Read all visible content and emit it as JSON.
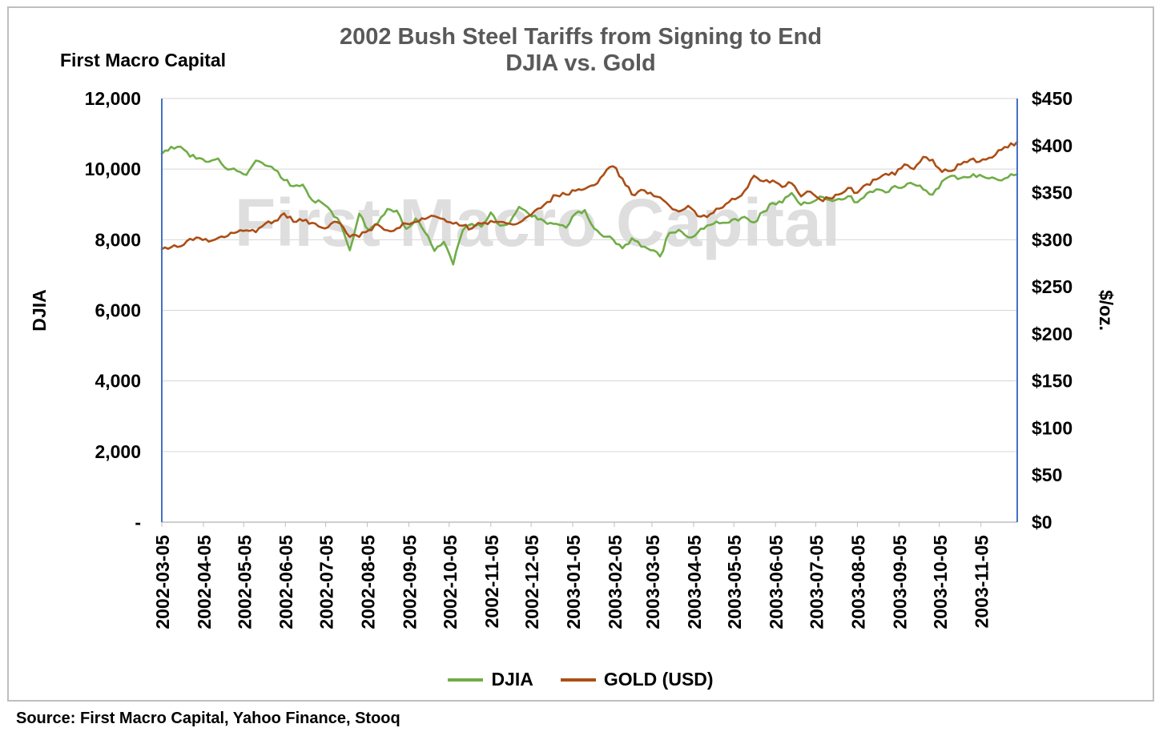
{
  "branding": {
    "top_left": "First Macro Capital",
    "watermark": "First Macro Capital"
  },
  "title": {
    "line1": "2002 Bush Steel Tariffs from Signing to End",
    "line2": "DJIA vs. Gold"
  },
  "source": "Source: First Macro Capital, Yahoo Finance, Stooq",
  "colors": {
    "djia": "#70AD47",
    "gold": "#AC4E15",
    "axis_line": "#4472C4",
    "grid": "#D6D6D6",
    "frame": "#BFBFBF",
    "title": "#595959",
    "watermark": "#DBDBDB"
  },
  "chart_data": {
    "type": "line",
    "title": "2002 Bush Steel Tariffs from Signing to End — DJIA vs. Gold",
    "grid": "horizontal",
    "legend_position": "bottom",
    "x": [
      "2002-03-05",
      "2002-03-12",
      "2002-03-19",
      "2002-03-26",
      "2002-04-02",
      "2002-04-09",
      "2002-04-16",
      "2002-04-23",
      "2002-04-30",
      "2002-05-07",
      "2002-05-14",
      "2002-05-21",
      "2002-05-28",
      "2002-06-04",
      "2002-06-11",
      "2002-06-18",
      "2002-06-25",
      "2002-07-02",
      "2002-07-09",
      "2002-07-16",
      "2002-07-23",
      "2002-07-30",
      "2002-08-06",
      "2002-08-13",
      "2002-08-20",
      "2002-08-27",
      "2002-09-03",
      "2002-09-10",
      "2002-09-17",
      "2002-09-24",
      "2002-10-01",
      "2002-10-08",
      "2002-10-15",
      "2002-10-22",
      "2002-10-29",
      "2002-11-05",
      "2002-11-12",
      "2002-11-19",
      "2002-11-26",
      "2002-12-03",
      "2002-12-10",
      "2002-12-17",
      "2002-12-24",
      "2002-12-31",
      "2003-01-07",
      "2003-01-14",
      "2003-01-21",
      "2003-01-28",
      "2003-02-04",
      "2003-02-11",
      "2003-02-18",
      "2003-02-25",
      "2003-03-04",
      "2003-03-11",
      "2003-03-18",
      "2003-03-25",
      "2003-04-01",
      "2003-04-08",
      "2003-04-15",
      "2003-04-22",
      "2003-04-29",
      "2003-05-06",
      "2003-05-13",
      "2003-05-20",
      "2003-05-27",
      "2003-06-03",
      "2003-06-10",
      "2003-06-17",
      "2003-06-24",
      "2003-07-01",
      "2003-07-08",
      "2003-07-15",
      "2003-07-22",
      "2003-07-29",
      "2003-08-05",
      "2003-08-12",
      "2003-08-19",
      "2003-08-26",
      "2003-09-02",
      "2003-09-09",
      "2003-09-16",
      "2003-09-23",
      "2003-09-30",
      "2003-10-07",
      "2003-10-14",
      "2003-10-21",
      "2003-10-28",
      "2003-11-04",
      "2003-11-11",
      "2003-11-18",
      "2003-11-25",
      "2003-12-02"
    ],
    "series": [
      {
        "name": "DJIA",
        "axis": "left",
        "color": "#70AD47",
        "values": [
          10433,
          10632,
          10635,
          10353,
          10313,
          10208,
          10301,
          9987,
          9946,
          9836,
          10243,
          10105,
          9981,
          9687,
          9517,
          9561,
          9120,
          9054,
          8813,
          8473,
          7702,
          8736,
          8274,
          8482,
          8872,
          8824,
          8308,
          8602,
          8207,
          7683,
          7939,
          7300,
          8255,
          8450,
          8368,
          8771,
          8398,
          8474,
          8931,
          8742,
          8574,
          8447,
          8448,
          8342,
          8740,
          8842,
          8318,
          8088,
          8013,
          7758,
          8041,
          7806,
          7704,
          7524,
          8194,
          8280,
          8069,
          8197,
          8402,
          8515,
          8480,
          8588,
          8647,
          8491,
          8793,
          9038,
          9054,
          9323,
          8985,
          9040,
          9223,
          9128,
          9158,
          9233,
          9061,
          9310,
          9428,
          9340,
          9523,
          9507,
          9567,
          9425,
          9275,
          9654,
          9812,
          9748,
          9774,
          9838,
          9737,
          9690,
          9763,
          9853
        ]
      },
      {
        "name": "GOLD (USD)",
        "axis": "right",
        "color": "#AC4E15",
        "values": [
          290,
          292,
          293,
          301,
          302,
          298,
          302,
          304,
          308,
          310,
          308,
          317,
          320,
          328,
          319,
          320,
          318,
          313,
          317,
          317,
          303,
          303,
          310,
          316,
          310,
          312,
          317,
          319,
          322,
          325,
          322,
          317,
          315,
          312,
          317,
          320,
          319,
          317,
          318,
          325,
          333,
          340,
          347,
          348,
          352,
          354,
          358,
          369,
          378,
          365,
          348,
          353,
          350,
          345,
          336,
          330,
          336,
          325,
          324,
          333,
          338,
          343,
          352,
          368,
          362,
          363,
          356,
          360,
          346,
          351,
          343,
          344,
          348,
          355,
          350,
          359,
          364,
          370,
          369,
          380,
          375,
          388,
          385,
          372,
          373,
          380,
          385,
          383,
          387,
          395,
          398,
          404
        ]
      }
    ],
    "left_axis": {
      "label": "DJIA",
      "min": 0,
      "max": 12000,
      "tick_values": [
        0,
        2000,
        4000,
        6000,
        8000,
        10000,
        12000
      ],
      "tick_labels": [
        "-",
        "2,000",
        "4,000",
        "6,000",
        "8,000",
        "10,000",
        "12,000"
      ]
    },
    "right_axis": {
      "label": "$/oz.",
      "min": 0,
      "max": 450,
      "tick_values": [
        0,
        50,
        100,
        150,
        200,
        250,
        300,
        350,
        400,
        450
      ],
      "tick_labels": [
        "$0",
        "$50",
        "$100",
        "$150",
        "$200",
        "$250",
        "$300",
        "$350",
        "$400",
        "$450"
      ]
    },
    "x_ticks": [
      "2002-03-05",
      "2002-04-05",
      "2002-05-05",
      "2002-06-05",
      "2002-07-05",
      "2002-08-05",
      "2002-09-05",
      "2002-10-05",
      "2002-11-05",
      "2002-12-05",
      "2003-01-05",
      "2003-02-05",
      "2003-03-05",
      "2003-04-05",
      "2003-05-05",
      "2003-06-05",
      "2003-07-05",
      "2003-08-05",
      "2003-09-05",
      "2003-10-05",
      "2003-11-05"
    ]
  },
  "legend": {
    "items": [
      "DJIA",
      "GOLD (USD)"
    ]
  }
}
